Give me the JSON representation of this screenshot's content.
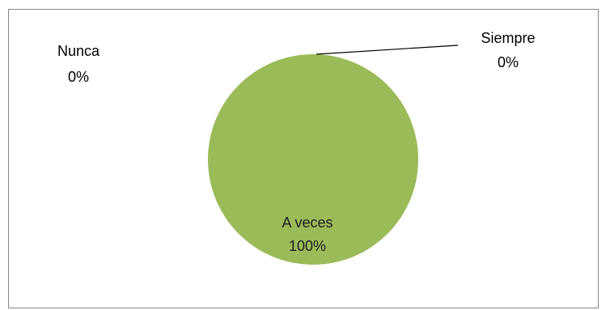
{
  "chart_data": {
    "type": "pie",
    "title": "",
    "categories": [
      "Siempre",
      "A veces",
      "Nunca"
    ],
    "values": [
      0,
      100,
      0
    ],
    "percent_labels": [
      "0%",
      "100%",
      "0%"
    ],
    "colors": [
      "#4f81bd",
      "#9bbb59",
      "#c0504d"
    ],
    "legend": "none",
    "data_labels": "category and percent"
  }
}
